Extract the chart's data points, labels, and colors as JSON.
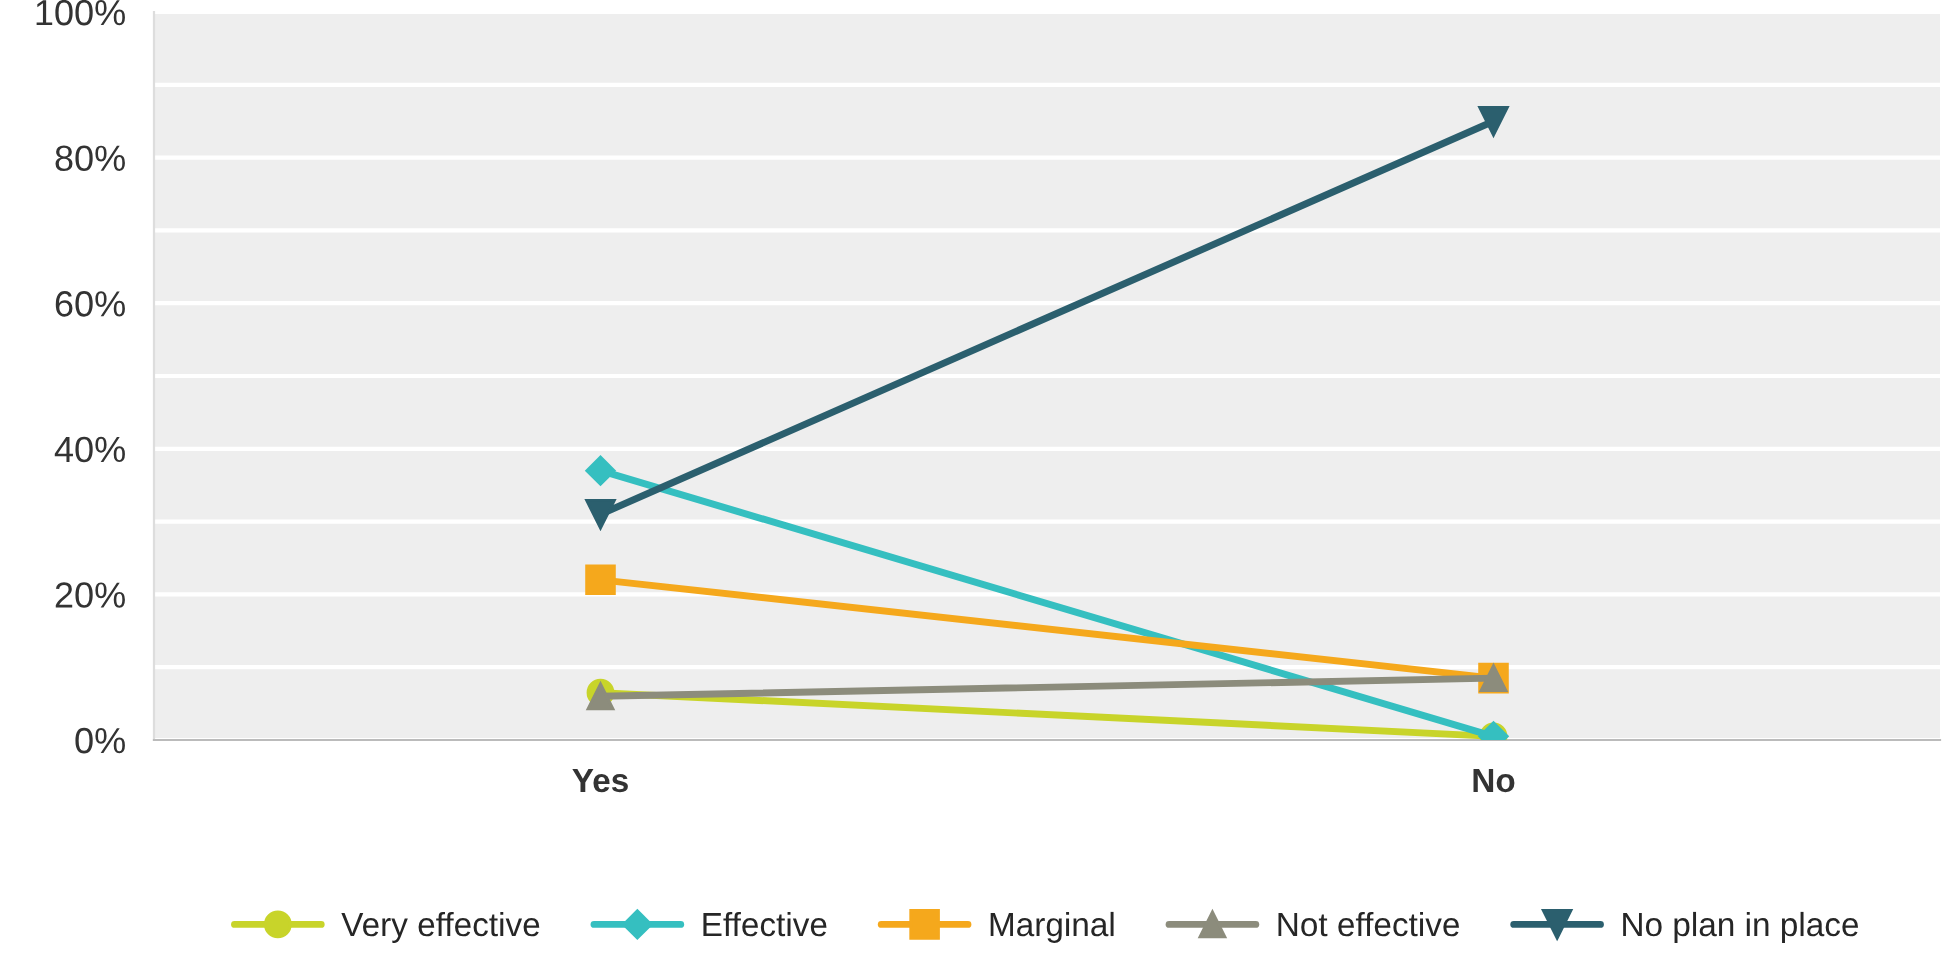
{
  "chart_data": {
    "type": "line",
    "categories": [
      "Yes",
      "No"
    ],
    "series": [
      {
        "name": "Very effective",
        "color": "#c8d42a",
        "marker": "circle",
        "values": [
          6.5,
          0.5
        ]
      },
      {
        "name": "Effective",
        "color": "#35bfc0",
        "marker": "diamond",
        "values": [
          37,
          0.5
        ]
      },
      {
        "name": "Marginal",
        "color": "#f5a81c",
        "marker": "square",
        "values": [
          22,
          8.5
        ]
      },
      {
        "name": "Not effective",
        "color": "#8c8c7c",
        "marker": "triangle",
        "values": [
          6,
          8.5
        ]
      },
      {
        "name": "No plan in place",
        "color": "#2b5f6e",
        "marker": "triangle_down",
        "values": [
          31,
          85
        ]
      }
    ],
    "ylim": [
      0,
      100
    ],
    "yticks": [
      {
        "value": 0,
        "label": "0%"
      },
      {
        "value": 10,
        "label": null
      },
      {
        "value": 20,
        "label": "20%"
      },
      {
        "value": 30,
        "label": null
      },
      {
        "value": 40,
        "label": "40%"
      },
      {
        "value": 50,
        "label": null
      },
      {
        "value": 60,
        "label": "60%"
      },
      {
        "value": 70,
        "label": null
      },
      {
        "value": 80,
        "label": "80%"
      },
      {
        "value": 90,
        "label": null
      },
      {
        "value": 100,
        "label": "100%"
      }
    ],
    "grid": "y",
    "legend": "bottom"
  }
}
